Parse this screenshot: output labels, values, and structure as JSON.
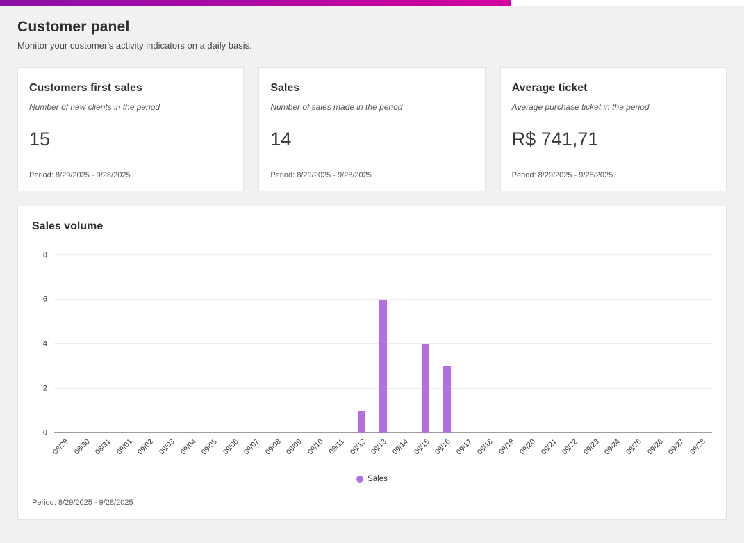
{
  "theme": {
    "gradient_start": "#8a10a8",
    "gradient_end": "#d4019f",
    "bar_color": "#b26ee4",
    "background": "#f1f0f2"
  },
  "header": {
    "title": "Customer panel",
    "subtitle": "Monitor your customer's activity indicators on a daily basis."
  },
  "cards": [
    {
      "title": "Customers first sales",
      "subtitle": "Number of new clients in the period",
      "value": "15",
      "period": "Period: 8/29/2025 - 9/28/2025"
    },
    {
      "title": "Sales",
      "subtitle": "Number of sales made in the period",
      "value": "14",
      "period": "Period: 8/29/2025 - 9/28/2025"
    },
    {
      "title": "Average ticket",
      "subtitle": "Average purchase ticket in the period",
      "value": "R$ 741,71",
      "period": "Period: 8/29/2025 - 9/28/2025"
    }
  ],
  "chart_card": {
    "title": "Sales volume",
    "legend_label": "Sales",
    "period": "Period: 8/29/2025 - 9/28/2025"
  },
  "chart_data": {
    "type": "bar",
    "title": "Sales volume",
    "categories": [
      "08/29",
      "08/30",
      "08/31",
      "09/01",
      "09/02",
      "09/03",
      "09/04",
      "09/05",
      "09/06",
      "09/07",
      "09/08",
      "09/09",
      "09/10",
      "09/11",
      "09/12",
      "09/13",
      "09/14",
      "09/15",
      "09/16",
      "09/17",
      "09/18",
      "09/19",
      "09/20",
      "09/21",
      "09/22",
      "09/23",
      "09/24",
      "09/25",
      "09/26",
      "09/27",
      "09/28"
    ],
    "series": [
      {
        "name": "Sales",
        "values": [
          0,
          0,
          0,
          0,
          0,
          0,
          0,
          0,
          0,
          0,
          0,
          0,
          0,
          0,
          1,
          6,
          0,
          4,
          3,
          0,
          0,
          0,
          0,
          0,
          0,
          0,
          0,
          0,
          0,
          0,
          0
        ]
      }
    ],
    "xlabel": "",
    "ylabel": "",
    "ylim": [
      0,
      8
    ],
    "yticks": [
      0,
      2,
      4,
      6,
      8
    ],
    "grid": true,
    "legend_position": "bottom",
    "bar_color": "#b26ee4"
  }
}
